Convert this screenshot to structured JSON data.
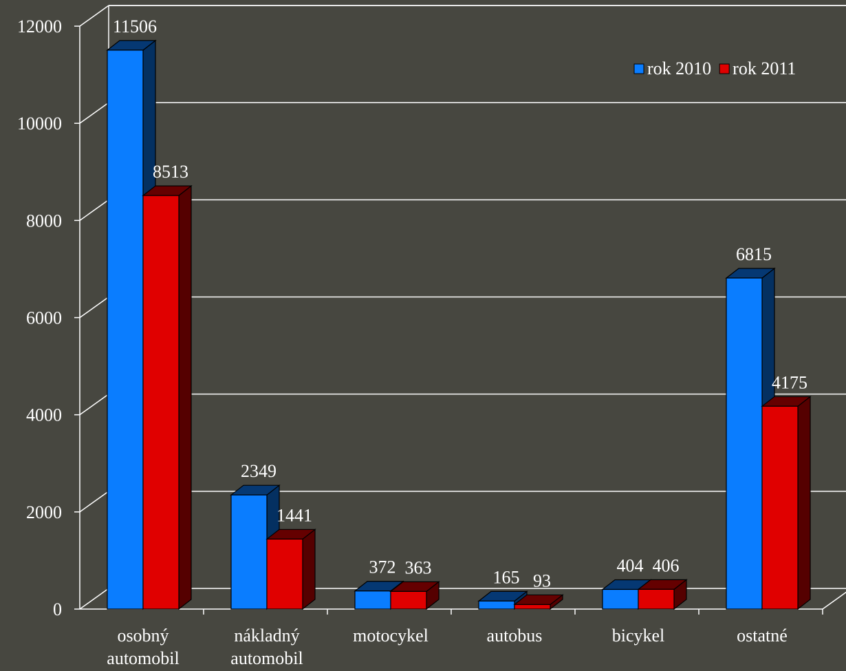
{
  "chart_data": {
    "type": "bar",
    "categories": [
      [
        "osobný",
        "automobil"
      ],
      [
        "nákladný",
        "automobil"
      ],
      [
        "motocykel"
      ],
      [
        "autobus"
      ],
      [
        "bicykel"
      ],
      [
        "ostatné"
      ]
    ],
    "series": [
      {
        "name": "rok 2010",
        "color": "#0a7dff",
        "values": [
          11506,
          2349,
          372,
          165,
          404,
          6815
        ]
      },
      {
        "name": "rok 2011",
        "color": "#e00000",
        "values": [
          8513,
          1441,
          363,
          93,
          406,
          4175
        ]
      }
    ],
    "yticks": [
      "0",
      "2000",
      "4000",
      "6000",
      "8000",
      "10000",
      "12000"
    ],
    "ylim": [
      0,
      12000
    ],
    "grid": true,
    "legend": "top-right",
    "three_d": true,
    "axis_color": "#ffffff",
    "background": "#474740"
  }
}
